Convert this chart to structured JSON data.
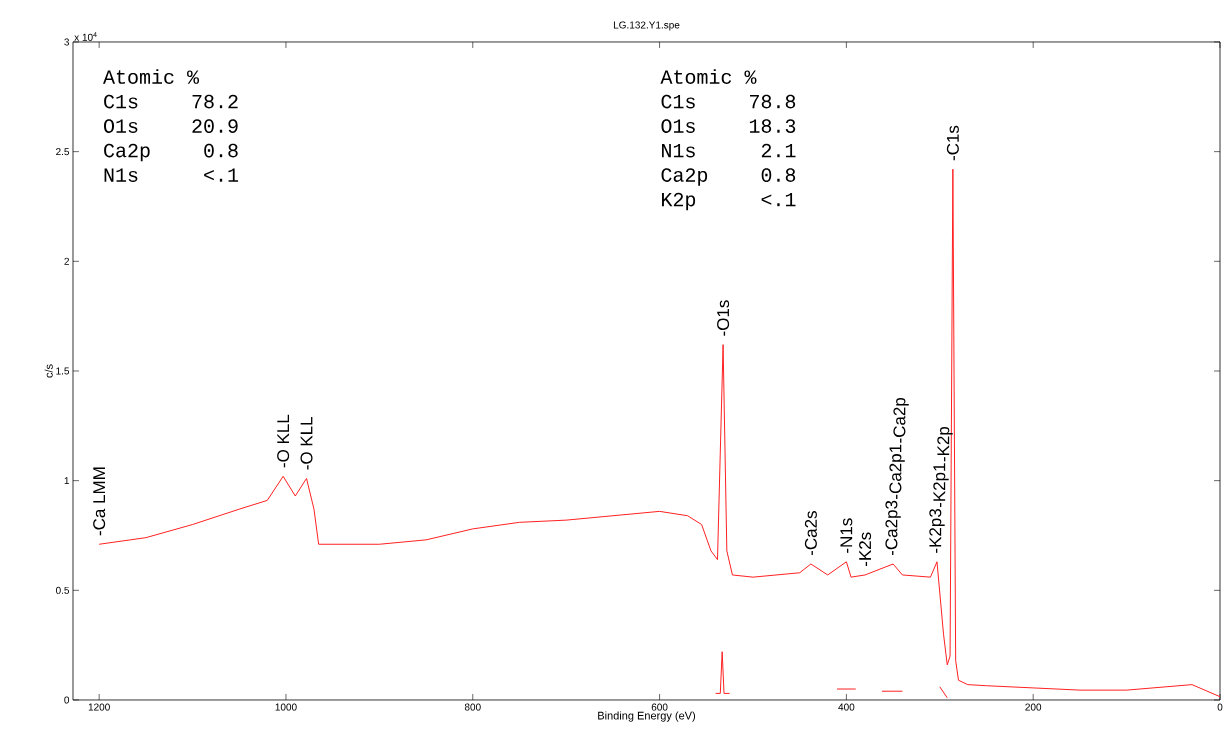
{
  "chart_data": {
    "type": "line",
    "title": "LG.132.Y1.spe",
    "xlabel": "Binding Energy (eV)",
    "ylabel": "c/s",
    "xlim": [
      1228,
      0
    ],
    "ylim": [
      0,
      3
    ],
    "xticks": [
      1200,
      1000,
      800,
      600,
      400,
      200,
      0
    ],
    "yticks": [
      0,
      0.5,
      1,
      1.5,
      2,
      2.5,
      3
    ],
    "series": [
      {
        "color": "#ff2020",
        "x": [
          1200,
          1150,
          1100,
          1050,
          1020,
          1003,
          990,
          978,
          970,
          965,
          950,
          900,
          850,
          800,
          750,
          700,
          650,
          600,
          570,
          555,
          545,
          538,
          532,
          528,
          522,
          500,
          450,
          438,
          420,
          400,
          395,
          380,
          350,
          340,
          310,
          303,
          296,
          292,
          289,
          286,
          283,
          280,
          270,
          250,
          200,
          150,
          100,
          30,
          0
        ],
        "values": [
          0.71,
          0.74,
          0.8,
          0.87,
          0.91,
          1.02,
          0.93,
          1.01,
          0.87,
          0.71,
          0.71,
          0.71,
          0.73,
          0.78,
          0.81,
          0.82,
          0.84,
          0.86,
          0.84,
          0.8,
          0.68,
          0.64,
          1.62,
          0.68,
          0.57,
          0.56,
          0.58,
          0.62,
          0.57,
          0.63,
          0.56,
          0.57,
          0.62,
          0.57,
          0.56,
          0.63,
          0.3,
          0.16,
          0.2,
          2.42,
          0.18,
          0.09,
          0.07,
          0.065,
          0.055,
          0.045,
          0.045,
          0.07,
          0.015
        ]
      },
      {
        "color": "#ff2020",
        "x": [
          540,
          535,
          533,
          531,
          525,
          518,
          410,
          390,
          380,
          362,
          340,
          320,
          300,
          292
        ],
        "values": [
          0.03,
          0.03,
          0.22,
          0.03,
          0.03,
          null,
          0.05,
          0.05,
          null,
          0.04,
          0.04,
          null,
          0.06,
          0.01
        ]
      }
    ],
    "annotations": [
      "x 10$^{4}$",
      "Atomic %",
      "C1s",
      "78.2",
      "O1s",
      "20.9",
      "Ca2p",
      "0.8",
      "N1s",
      "<.1",
      "Atomic %",
      "C1s",
      "78.8",
      "O1s",
      "18.3",
      "N1s",
      "2.1",
      "Ca2p",
      "0.8",
      "K2p",
      "<.1",
      {
        "text": "-Ca LMM",
        "x": 1200,
        "y": 0.71
      },
      {
        "text": "-O KLL",
        "x": 1003,
        "y": 1.02
      },
      {
        "text": "-O KLL",
        "x": 978,
        "y": 1.01
      },
      {
        "text": "-O1s",
        "x": 532,
        "y": 1.62
      },
      {
        "text": "-Ca2s",
        "x": 438,
        "y": 0.62
      },
      {
        "text": "-N1s",
        "x": 400,
        "y": 0.63
      },
      {
        "text": "-K2s",
        "x": 380,
        "y": 0.57
      },
      {
        "text": "-Ca2p3",
        "x": 350,
        "y": 0.62
      },
      "-Ca2p1",
      "-Ca2p",
      {
        "text": "-K2p3",
        "x": 303,
        "y": 0.63
      },
      "-K2p1",
      "-K2p",
      {
        "text": "-C1s",
        "x": 286,
        "y": 2.42
      }
    ]
  }
}
